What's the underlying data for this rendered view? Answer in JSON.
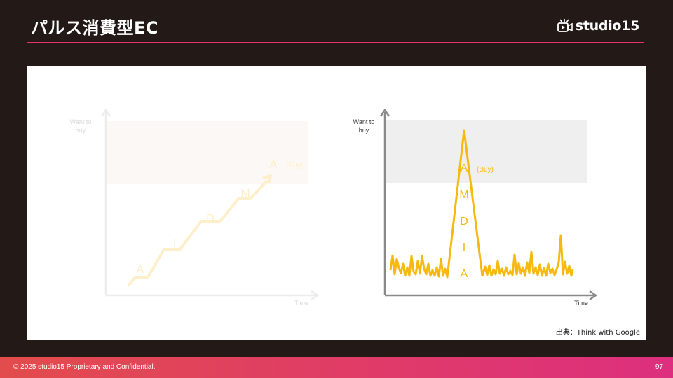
{
  "slide": {
    "title": "パルス消費型EC",
    "logo_text": "studio15",
    "source": "出典：Think with Google",
    "copyright": "© 2025 studio15 Proprietary and Confidential.",
    "page_number": "97"
  },
  "left_diagram": {
    "y_label_line1": "Want to",
    "y_label_line2": "buy",
    "x_label": "Time",
    "stages": [
      "A",
      "I",
      "D",
      "M",
      "A"
    ],
    "buy_label": "(Buy)"
  },
  "right_diagram": {
    "y_label_line1": "Want to",
    "y_label_line2": "buy",
    "x_label": "Time",
    "stages": [
      "A",
      "M",
      "D",
      "I",
      "A"
    ],
    "buy_label": "(Buy)"
  },
  "colors": {
    "background": "#231a18",
    "accent_rule": "#e0336f",
    "pulse_line": "#f7b90f",
    "faded_line": "#fdeec4",
    "axis": "#8a8a8a",
    "buy_zone": "#efefef"
  }
}
